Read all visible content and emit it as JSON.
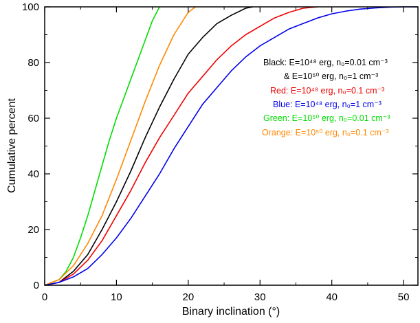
{
  "chart_data": {
    "type": "line",
    "xlabel": "Binary inclination (°)",
    "ylabel": "Cumulative percent",
    "xlim": [
      0,
      52
    ],
    "ylim": [
      0,
      100
    ],
    "x_ticks": [
      "0",
      "10",
      "20",
      "30",
      "40",
      "50"
    ],
    "y_ticks": [
      "0",
      "20",
      "40",
      "60",
      "80",
      "100"
    ],
    "legend_position": "right",
    "series": [
      {
        "color": "#00dd00",
        "x": [
          0,
          2,
          3,
          4,
          5,
          6,
          7,
          8,
          9,
          10,
          11,
          12,
          13,
          14,
          15,
          16
        ],
        "y": [
          0,
          2,
          5,
          10,
          17,
          25,
          34,
          43,
          52,
          60,
          67,
          74,
          81,
          88,
          95,
          100
        ]
      },
      {
        "color": "#ff8800",
        "x": [
          0,
          2,
          4,
          6,
          8,
          10,
          12,
          14,
          16,
          18,
          20,
          21
        ],
        "y": [
          0,
          2,
          7,
          15,
          25,
          38,
          52,
          66,
          79,
          90,
          98,
          100
        ]
      },
      {
        "color": "#000000",
        "x": [
          0,
          2,
          4,
          6,
          8,
          10,
          12,
          14,
          16,
          18,
          20,
          22,
          24,
          26,
          28,
          29
        ],
        "y": [
          0,
          1,
          5,
          11,
          20,
          30,
          41,
          53,
          64,
          74,
          83,
          89,
          94,
          97,
          99.5,
          100
        ]
      },
      {
        "color": "#ee0000",
        "x": [
          0,
          2,
          4,
          6,
          8,
          10,
          12,
          14,
          16,
          18,
          20,
          22,
          24,
          26,
          28,
          30,
          32,
          34,
          36,
          38
        ],
        "y": [
          0,
          1,
          4,
          9,
          16,
          25,
          34,
          44,
          53,
          61,
          69,
          75,
          81,
          86,
          90,
          93,
          96,
          98,
          99.5,
          100
        ]
      },
      {
        "color": "#0000ee",
        "x": [
          0,
          2,
          4,
          6,
          8,
          10,
          12,
          14,
          16,
          18,
          20,
          22,
          24,
          26,
          28,
          30,
          32,
          34,
          36,
          38,
          40,
          42,
          44,
          46,
          48,
          50,
          52
        ],
        "y": [
          0,
          1,
          3,
          6,
          11,
          17,
          24,
          32,
          40,
          49,
          57,
          65,
          71,
          77,
          82,
          86,
          89,
          92,
          94,
          96,
          97.5,
          98.5,
          99.2,
          99.6,
          99.9,
          100,
          100
        ]
      }
    ],
    "legend": [
      {
        "text": "Black: E=10⁴⁸ erg, n₀=0.01 cm⁻³",
        "color": "#000000"
      },
      {
        "text": "& E=10⁵⁰ erg, n₀=1 cm⁻³",
        "color": "#000000"
      },
      {
        "text": "Red: E=10⁴⁸ erg, n₀=0.1 cm⁻³",
        "color": "#ee0000"
      },
      {
        "text": "Blue: E=10⁴⁸ erg, n₀=1 cm⁻³",
        "color": "#0000ee"
      },
      {
        "text": "Green: E=10⁵⁰ erg, n₀=0.01 cm⁻³",
        "color": "#00dd00"
      },
      {
        "text": "Orange: E=10⁵⁰ erg, n₀=0.1 cm⁻³",
        "color": "#ff8800"
      }
    ]
  }
}
